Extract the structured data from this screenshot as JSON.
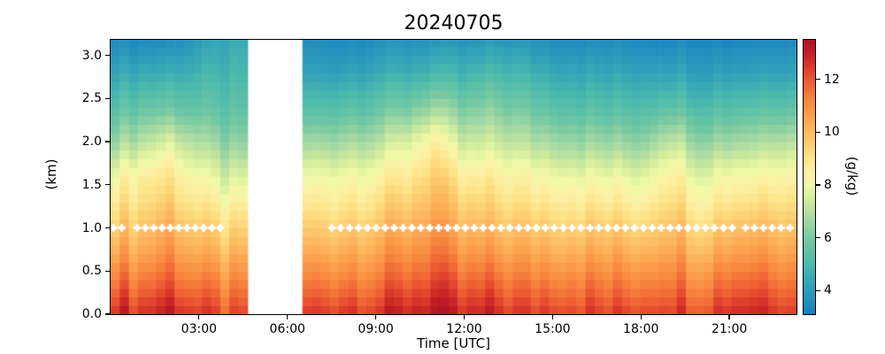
{
  "figure": {
    "title": "20240705"
  },
  "axes": {
    "xlabel": "Time [UTC]",
    "ylabel": "(km)",
    "xlim_hours": [
      0,
      23.28
    ],
    "ylim_km": [
      0,
      3.18
    ],
    "x_ticks": [
      {
        "label": "03:00",
        "hour": 3
      },
      {
        "label": "06:00",
        "hour": 6
      },
      {
        "label": "09:00",
        "hour": 9
      },
      {
        "label": "12:00",
        "hour": 12
      },
      {
        "label": "15:00",
        "hour": 15
      },
      {
        "label": "18:00",
        "hour": 18
      },
      {
        "label": "21:00",
        "hour": 21
      }
    ],
    "y_ticks": [
      {
        "label": "0.0",
        "km": 0.0
      },
      {
        "label": "0.5",
        "km": 0.5
      },
      {
        "label": "1.0",
        "km": 1.0
      },
      {
        "label": "1.5",
        "km": 1.5
      },
      {
        "label": "2.0",
        "km": 2.0
      },
      {
        "label": "2.5",
        "km": 2.5
      },
      {
        "label": "3.0",
        "km": 3.0
      }
    ]
  },
  "colorbar": {
    "label": "(g/kg)",
    "vmin": 3.1,
    "vmax": 13.5,
    "ticks": [
      {
        "label": "4",
        "value": 4
      },
      {
        "label": "6",
        "value": 6
      },
      {
        "label": "8",
        "value": 8
      },
      {
        "label": "10",
        "value": 10
      },
      {
        "label": "12",
        "value": 12
      }
    ],
    "colormap_stops": [
      [
        0.0,
        "#1a7fc1"
      ],
      [
        0.1,
        "#2f9fba"
      ],
      [
        0.19,
        "#4fbcab"
      ],
      [
        0.27,
        "#73c8a2"
      ],
      [
        0.35,
        "#a8daa3"
      ],
      [
        0.42,
        "#d3ec9d"
      ],
      [
        0.47,
        "#eef9a7"
      ],
      [
        0.52,
        "#fdf0a4"
      ],
      [
        0.57,
        "#fee488"
      ],
      [
        0.63,
        "#fdc96c"
      ],
      [
        0.7,
        "#fdab55"
      ],
      [
        0.78,
        "#f8883f"
      ],
      [
        0.85,
        "#ee5e33"
      ],
      [
        0.9,
        "#dd3b2b"
      ],
      [
        0.96,
        "#c01c25"
      ],
      [
        1.0,
        "#b01325"
      ]
    ]
  },
  "chart_data": {
    "type": "heatmap",
    "title": "20240705",
    "xlabel": "Time [UTC]",
    "ylabel": "(km)",
    "units": "g/kg",
    "grid": false,
    "value_range": [
      3.1,
      13.5
    ],
    "column_step_hours": 0.31,
    "row_step_km": 0.1,
    "streak_jitter": 0.45,
    "no_data_gap_hours": [
      4.72,
      6.6
    ],
    "profile_hours": [
      0,
      1,
      2,
      3,
      4,
      5,
      6,
      7,
      8,
      9,
      10,
      11,
      12,
      13,
      14,
      15,
      16,
      17,
      18,
      19,
      20,
      21,
      22,
      23
    ],
    "profile_heights_km": [
      0,
      0.4,
      0.8,
      1.2,
      1.6,
      2.0,
      2.4,
      2.8,
      3.2
    ],
    "profiles_g_per_kg": [
      [
        13.2,
        11.8,
        10.5,
        9.3,
        8.2,
        6.6,
        5.4,
        4.4,
        3.6
      ],
      [
        12.6,
        11.4,
        10.2,
        9.3,
        8.6,
        7.0,
        5.6,
        4.5,
        3.4
      ],
      [
        13.3,
        12.0,
        10.9,
        9.9,
        9.0,
        7.7,
        5.8,
        4.6,
        3.5
      ],
      [
        12.4,
        11.2,
        10.0,
        9.0,
        8.0,
        6.8,
        5.5,
        4.7,
        4.0
      ],
      [
        12.0,
        10.9,
        9.7,
        8.6,
        7.4,
        6.2,
        5.3,
        4.8,
        4.4
      ],
      [
        12.0,
        10.9,
        9.7,
        8.6,
        7.4,
        6.2,
        5.3,
        4.8,
        4.4
      ],
      [
        12.5,
        11.3,
        10.1,
        9.0,
        8.0,
        6.6,
        5.2,
        4.2,
        3.5
      ],
      [
        12.5,
        11.3,
        10.1,
        9.0,
        8.0,
        6.6,
        5.2,
        4.2,
        3.5
      ],
      [
        12.8,
        11.5,
        10.3,
        9.2,
        8.2,
        6.8,
        5.4,
        4.3,
        3.4
      ],
      [
        12.7,
        11.5,
        10.4,
        9.4,
        8.4,
        7.0,
        5.6,
        4.5,
        3.6
      ],
      [
        13.0,
        11.8,
        10.7,
        9.7,
        8.8,
        7.6,
        5.9,
        4.6,
        3.7
      ],
      [
        13.4,
        12.3,
        11.3,
        10.4,
        9.6,
        8.6,
        6.6,
        4.9,
        3.8
      ],
      [
        12.6,
        11.5,
        10.4,
        9.4,
        8.5,
        7.2,
        5.9,
        4.7,
        3.7
      ],
      [
        12.9,
        11.7,
        10.5,
        9.5,
        8.6,
        7.4,
        6.2,
        5.0,
        3.9
      ],
      [
        12.4,
        11.3,
        10.2,
        9.2,
        8.3,
        7.0,
        5.8,
        4.8,
        3.8
      ],
      [
        12.7,
        11.5,
        10.3,
        9.2,
        8.2,
        6.8,
        5.5,
        4.5,
        3.6
      ],
      [
        12.5,
        11.4,
        10.2,
        9.1,
        8.0,
        6.6,
        5.3,
        4.4,
        3.5
      ],
      [
        12.3,
        11.2,
        10.1,
        9.0,
        7.9,
        6.5,
        5.2,
        4.3,
        3.5
      ],
      [
        12.5,
        11.3,
        10.1,
        8.9,
        7.8,
        6.4,
        5.2,
        4.3,
        3.4
      ],
      [
        12.8,
        11.7,
        10.6,
        9.7,
        8.8,
        7.4,
        5.6,
        4.4,
        3.4
      ],
      [
        12.4,
        11.2,
        10.0,
        8.9,
        7.9,
        6.5,
        5.2,
        4.2,
        3.4
      ],
      [
        12.9,
        11.7,
        10.5,
        9.3,
        8.2,
        6.7,
        5.3,
        4.2,
        3.3
      ],
      [
        13.1,
        11.9,
        10.7,
        9.5,
        8.4,
        6.9,
        5.4,
        4.3,
        3.4
      ],
      [
        12.8,
        11.7,
        10.6,
        9.6,
        8.6,
        7.2,
        5.6,
        4.4,
        3.5
      ]
    ],
    "markers": {
      "name": "white-plus-markers",
      "height_km": 1.0,
      "color": "#ffffff",
      "segments": [
        {
          "start_hour": 0.09,
          "end_hour": 0.38,
          "count": 2
        },
        {
          "start_hour": 0.9,
          "end_hour": 3.72,
          "count": 11
        },
        {
          "start_hour": 7.51,
          "end_hour": 21.1,
          "count": 46
        },
        {
          "start_hour": 21.55,
          "end_hour": 23.06,
          "count": 6
        }
      ]
    }
  }
}
